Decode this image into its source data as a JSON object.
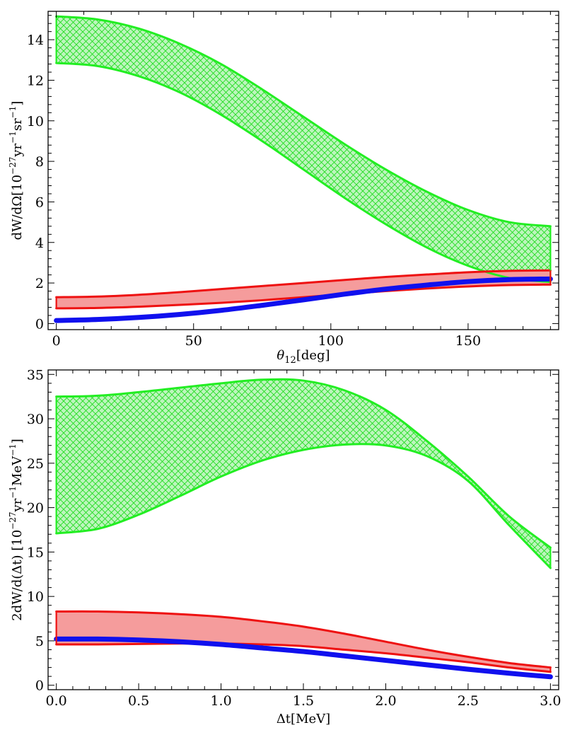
{
  "colors": {
    "green": "#22ee22",
    "green_fill": "#bdf5bd",
    "red": "#ee1111",
    "red_fill": "#f59c9c",
    "blue": "#1010ee"
  },
  "chart_data": [
    {
      "type": "line",
      "title": "",
      "xlabel_main": "θ",
      "xlabel_sub": "12",
      "xlabel_unit": "[deg]",
      "ylabel_main": "dW/dΩ[10",
      "ylabel_exp1": "−27",
      "ylabel_mid": "yr",
      "ylabel_exp2": "−1",
      "ylabel_mid2": "sr",
      "ylabel_exp3": "−1",
      "ylabel_end": "]",
      "xlim": [
        -3,
        183
      ],
      "ylim": [
        -0.3,
        15.4
      ],
      "xticks": [
        0,
        50,
        100,
        150
      ],
      "yticks": [
        0,
        2,
        4,
        6,
        8,
        10,
        12,
        14
      ],
      "x": [
        0,
        15,
        30,
        45,
        60,
        75,
        90,
        105,
        120,
        135,
        150,
        165,
        180
      ],
      "series": [
        {
          "name": "green-upper",
          "color": "green",
          "values": [
            15.15,
            15.0,
            14.55,
            13.8,
            12.8,
            11.55,
            10.2,
            8.85,
            7.6,
            6.5,
            5.6,
            5.0,
            4.8
          ]
        },
        {
          "name": "green-lower",
          "color": "green",
          "values": [
            12.85,
            12.7,
            12.2,
            11.4,
            10.3,
            9.0,
            7.6,
            6.2,
            4.9,
            3.75,
            2.85,
            2.25,
            2.05
          ]
        },
        {
          "name": "red-upper",
          "color": "red",
          "values": [
            1.3,
            1.33,
            1.42,
            1.55,
            1.7,
            1.85,
            2.0,
            2.15,
            2.3,
            2.42,
            2.53,
            2.6,
            2.62
          ]
        },
        {
          "name": "red-lower",
          "color": "red",
          "values": [
            0.75,
            0.77,
            0.83,
            0.92,
            1.02,
            1.15,
            1.3,
            1.45,
            1.6,
            1.73,
            1.83,
            1.9,
            1.92
          ]
        },
        {
          "name": "blue",
          "color": "blue",
          "values": [
            0.15,
            0.2,
            0.3,
            0.45,
            0.65,
            0.9,
            1.17,
            1.45,
            1.7,
            1.9,
            2.07,
            2.17,
            2.2
          ]
        }
      ],
      "bands": [
        {
          "upper": "green-upper",
          "lower": "green-lower",
          "fill": "green_fill",
          "hatch": true
        },
        {
          "upper": "red-upper",
          "lower": "red-lower",
          "fill": "red_fill",
          "hatch": false
        }
      ]
    },
    {
      "type": "line",
      "title": "",
      "xlabel_main": "Δt[MeV]",
      "ylabel_main": "2dW/d(Δt) [10",
      "ylabel_exp1": "−27",
      "ylabel_mid": "yr",
      "ylabel_exp2": "−1",
      "ylabel_mid2": "MeV",
      "ylabel_exp3": "−1",
      "ylabel_end": "]",
      "xlim": [
        -0.05,
        3.05
      ],
      "ylim": [
        -0.5,
        35.5
      ],
      "xticks": [
        0.0,
        0.5,
        1.0,
        1.5,
        2.0,
        2.5,
        3.0
      ],
      "xtick_labels": [
        "0.0",
        "0.5",
        "1.0",
        "1.5",
        "2.0",
        "2.5",
        "3.0"
      ],
      "yticks": [
        0,
        5,
        10,
        15,
        20,
        25,
        30,
        35
      ],
      "x": [
        0.0,
        0.25,
        0.5,
        0.75,
        1.0,
        1.25,
        1.5,
        1.75,
        2.0,
        2.25,
        2.5,
        2.75,
        3.0
      ],
      "series": [
        {
          "name": "green-upper",
          "color": "green",
          "values": [
            32.5,
            32.6,
            33.0,
            33.5,
            34.0,
            34.4,
            34.3,
            33.2,
            31.0,
            27.5,
            23.5,
            19.0,
            15.5
          ]
        },
        {
          "name": "green-lower",
          "color": "green",
          "values": [
            17.1,
            17.6,
            19.2,
            21.3,
            23.5,
            25.3,
            26.5,
            27.1,
            27.0,
            25.8,
            23.0,
            18.0,
            13.2
          ]
        },
        {
          "name": "red-upper",
          "color": "red",
          "values": [
            8.3,
            8.3,
            8.2,
            8.0,
            7.7,
            7.2,
            6.6,
            5.8,
            4.9,
            4.0,
            3.2,
            2.5,
            2.0
          ]
        },
        {
          "name": "red-lower",
          "color": "red",
          "values": [
            4.6,
            4.6,
            4.65,
            4.7,
            4.7,
            4.6,
            4.4,
            4.0,
            3.6,
            3.1,
            2.6,
            2.0,
            1.5
          ]
        },
        {
          "name": "blue",
          "color": "blue",
          "values": [
            5.2,
            5.2,
            5.1,
            4.9,
            4.6,
            4.2,
            3.8,
            3.3,
            2.8,
            2.3,
            1.8,
            1.35,
            0.95
          ]
        }
      ],
      "bands": [
        {
          "upper": "green-upper",
          "lower": "green-lower",
          "fill": "green_fill",
          "hatch": true
        },
        {
          "upper": "red-upper",
          "lower": "red-lower",
          "fill": "red_fill",
          "hatch": false
        }
      ]
    }
  ]
}
